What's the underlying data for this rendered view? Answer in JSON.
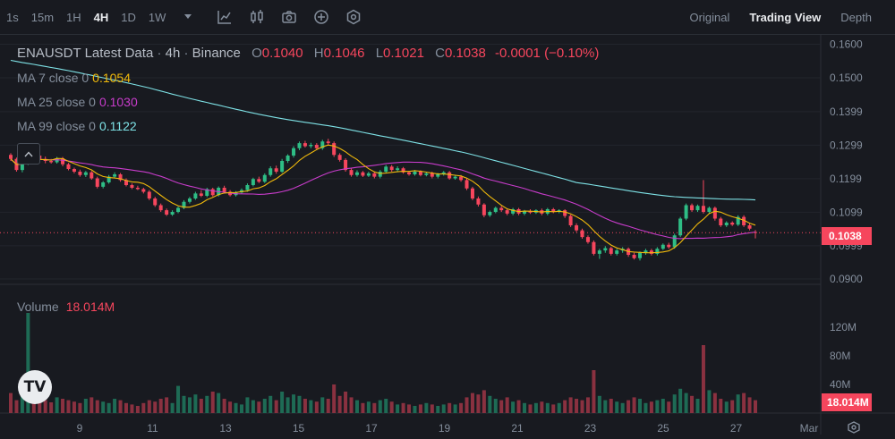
{
  "toolbar": {
    "timeframes": [
      "1s",
      "15m",
      "1H",
      "4H",
      "1D",
      "1W"
    ],
    "active_timeframe": "4H",
    "icons": [
      "chevron-down-icon",
      "indicators-icon",
      "candle-style-icon",
      "camera-icon",
      "add-icon",
      "settings-icon"
    ]
  },
  "views": {
    "original": "Original",
    "trading_view": "Trading View",
    "depth": "Depth",
    "active": "Trading View"
  },
  "legend": {
    "symbol": "ENAUSDT Latest Data",
    "sep1": "·",
    "interval": "4h",
    "sep2": "·",
    "exchange": "Binance",
    "o_label": "O",
    "o_value": "0.1040",
    "h_label": "H",
    "h_value": "0.1046",
    "l_label": "L",
    "l_value": "0.1021",
    "c_label": "C",
    "c_value": "0.1038",
    "change": "-0.0001",
    "change_pct": "(−0.10%)",
    "ma7_label": "MA 7 close 0",
    "ma7_value": "0.1054",
    "ma25_label": "MA 25 close 0",
    "ma25_value": "0.1030",
    "ma99_label": "MA 99 close 0",
    "ma99_value": "0.1122"
  },
  "volume": {
    "label": "Volume",
    "value": "18.014M",
    "tag": "18.014M"
  },
  "price_tag": "0.1038",
  "colors": {
    "up": "#2ebd85",
    "down": "#f6465d",
    "ma7": "#f0b90b",
    "ma25": "#c83ccb",
    "ma99": "#7ee2e6",
    "bg": "#181a20",
    "grid": "#2b2f36"
  },
  "chart_data": {
    "type": "candlestick",
    "price_axis": {
      "ticks": [
        "0.1600",
        "0.1500",
        "0.1399",
        "0.1299",
        "0.1199",
        "0.1099",
        "0.0999",
        "0.0900"
      ],
      "range": [
        0.0884,
        0.1628
      ]
    },
    "volume_axis": {
      "ticks": [
        "120M",
        "80M",
        "40M"
      ],
      "range": [
        0,
        150
      ]
    },
    "x_axis": {
      "ticks": [
        "9",
        "11",
        "13",
        "15",
        "17",
        "19",
        "21",
        "23",
        "25",
        "27",
        "Mar"
      ]
    },
    "candles": [
      {
        "o": 0.127,
        "c": 0.1258,
        "h": 0.1275,
        "l": 0.1252,
        "v": 28
      },
      {
        "o": 0.1258,
        "c": 0.1225,
        "h": 0.1262,
        "l": 0.122,
        "v": 18
      },
      {
        "o": 0.1225,
        "c": 0.1245,
        "h": 0.125,
        "l": 0.1218,
        "v": 30
      },
      {
        "o": 0.1245,
        "c": 0.1285,
        "h": 0.129,
        "l": 0.124,
        "v": 140
      },
      {
        "o": 0.1285,
        "c": 0.1268,
        "h": 0.1292,
        "l": 0.1262,
        "v": 32
      },
      {
        "o": 0.1268,
        "c": 0.1258,
        "h": 0.1275,
        "l": 0.1255,
        "v": 22
      },
      {
        "o": 0.1258,
        "c": 0.1252,
        "h": 0.1265,
        "l": 0.1245,
        "v": 18
      },
      {
        "o": 0.1252,
        "c": 0.1248,
        "h": 0.1258,
        "l": 0.1244,
        "v": 15
      },
      {
        "o": 0.1248,
        "c": 0.126,
        "h": 0.1264,
        "l": 0.1244,
        "v": 22
      },
      {
        "o": 0.126,
        "c": 0.1242,
        "h": 0.1264,
        "l": 0.1236,
        "v": 20
      },
      {
        "o": 0.1242,
        "c": 0.1228,
        "h": 0.1246,
        "l": 0.1224,
        "v": 18
      },
      {
        "o": 0.1228,
        "c": 0.122,
        "h": 0.1232,
        "l": 0.1215,
        "v": 16
      },
      {
        "o": 0.122,
        "c": 0.121,
        "h": 0.1226,
        "l": 0.1205,
        "v": 14
      },
      {
        "o": 0.121,
        "c": 0.1218,
        "h": 0.1222,
        "l": 0.1204,
        "v": 20
      },
      {
        "o": 0.1218,
        "c": 0.12,
        "h": 0.1222,
        "l": 0.1196,
        "v": 22
      },
      {
        "o": 0.12,
        "c": 0.1175,
        "h": 0.1205,
        "l": 0.117,
        "v": 18
      },
      {
        "o": 0.1175,
        "c": 0.1188,
        "h": 0.1192,
        "l": 0.117,
        "v": 16
      },
      {
        "o": 0.1188,
        "c": 0.1205,
        "h": 0.121,
        "l": 0.1184,
        "v": 14
      },
      {
        "o": 0.1205,
        "c": 0.1212,
        "h": 0.1218,
        "l": 0.12,
        "v": 20
      },
      {
        "o": 0.1212,
        "c": 0.1195,
        "h": 0.1216,
        "l": 0.119,
        "v": 18
      },
      {
        "o": 0.1195,
        "c": 0.118,
        "h": 0.12,
        "l": 0.1176,
        "v": 14
      },
      {
        "o": 0.118,
        "c": 0.1172,
        "h": 0.1185,
        "l": 0.1168,
        "v": 12
      },
      {
        "o": 0.1172,
        "c": 0.1168,
        "h": 0.1178,
        "l": 0.1165,
        "v": 10
      },
      {
        "o": 0.1168,
        "c": 0.116,
        "h": 0.1172,
        "l": 0.1155,
        "v": 14
      },
      {
        "o": 0.116,
        "c": 0.114,
        "h": 0.1165,
        "l": 0.1135,
        "v": 18
      },
      {
        "o": 0.114,
        "c": 0.112,
        "h": 0.1145,
        "l": 0.1115,
        "v": 16
      },
      {
        "o": 0.112,
        "c": 0.1105,
        "h": 0.1125,
        "l": 0.11,
        "v": 20
      },
      {
        "o": 0.1105,
        "c": 0.1092,
        "h": 0.111,
        "l": 0.1088,
        "v": 22
      },
      {
        "o": 0.1092,
        "c": 0.11,
        "h": 0.1105,
        "l": 0.1088,
        "v": 14
      },
      {
        "o": 0.11,
        "c": 0.1112,
        "h": 0.1116,
        "l": 0.1096,
        "v": 38
      },
      {
        "o": 0.1112,
        "c": 0.113,
        "h": 0.1135,
        "l": 0.1108,
        "v": 24
      },
      {
        "o": 0.113,
        "c": 0.114,
        "h": 0.1145,
        "l": 0.1125,
        "v": 22
      },
      {
        "o": 0.114,
        "c": 0.1155,
        "h": 0.116,
        "l": 0.1136,
        "v": 26
      },
      {
        "o": 0.1155,
        "c": 0.1148,
        "h": 0.1165,
        "l": 0.1144,
        "v": 20
      },
      {
        "o": 0.1148,
        "c": 0.1168,
        "h": 0.1172,
        "l": 0.1144,
        "v": 24
      },
      {
        "o": 0.1168,
        "c": 0.115,
        "h": 0.1172,
        "l": 0.1146,
        "v": 30
      },
      {
        "o": 0.115,
        "c": 0.1172,
        "h": 0.1176,
        "l": 0.1146,
        "v": 28
      },
      {
        "o": 0.1172,
        "c": 0.116,
        "h": 0.1178,
        "l": 0.1156,
        "v": 20
      },
      {
        "o": 0.116,
        "c": 0.115,
        "h": 0.1165,
        "l": 0.1146,
        "v": 16
      },
      {
        "o": 0.115,
        "c": 0.1158,
        "h": 0.1162,
        "l": 0.1146,
        "v": 14
      },
      {
        "o": 0.1158,
        "c": 0.1165,
        "h": 0.117,
        "l": 0.1154,
        "v": 12
      },
      {
        "o": 0.1165,
        "c": 0.118,
        "h": 0.1185,
        "l": 0.116,
        "v": 22
      },
      {
        "o": 0.118,
        "c": 0.1198,
        "h": 0.1202,
        "l": 0.1176,
        "v": 18
      },
      {
        "o": 0.1198,
        "c": 0.119,
        "h": 0.1205,
        "l": 0.1186,
        "v": 16
      },
      {
        "o": 0.119,
        "c": 0.121,
        "h": 0.1215,
        "l": 0.1186,
        "v": 20
      },
      {
        "o": 0.121,
        "c": 0.123,
        "h": 0.1236,
        "l": 0.1205,
        "v": 24
      },
      {
        "o": 0.123,
        "c": 0.122,
        "h": 0.1238,
        "l": 0.1214,
        "v": 18
      },
      {
        "o": 0.122,
        "c": 0.1252,
        "h": 0.1258,
        "l": 0.1216,
        "v": 30
      },
      {
        "o": 0.1252,
        "c": 0.1268,
        "h": 0.1272,
        "l": 0.1246,
        "v": 22
      },
      {
        "o": 0.1268,
        "c": 0.129,
        "h": 0.1296,
        "l": 0.1262,
        "v": 26
      },
      {
        "o": 0.129,
        "c": 0.1305,
        "h": 0.131,
        "l": 0.1284,
        "v": 24
      },
      {
        "o": 0.1305,
        "c": 0.1296,
        "h": 0.1312,
        "l": 0.1292,
        "v": 20
      },
      {
        "o": 0.1296,
        "c": 0.13,
        "h": 0.1306,
        "l": 0.129,
        "v": 18
      },
      {
        "o": 0.13,
        "c": 0.129,
        "h": 0.1305,
        "l": 0.1284,
        "v": 16
      },
      {
        "o": 0.129,
        "c": 0.131,
        "h": 0.1315,
        "l": 0.1285,
        "v": 22
      },
      {
        "o": 0.131,
        "c": 0.1305,
        "h": 0.1318,
        "l": 0.1298,
        "v": 20
      },
      {
        "o": 0.1305,
        "c": 0.127,
        "h": 0.131,
        "l": 0.1264,
        "v": 40
      },
      {
        "o": 0.127,
        "c": 0.1255,
        "h": 0.1275,
        "l": 0.125,
        "v": 24
      },
      {
        "o": 0.1255,
        "c": 0.1225,
        "h": 0.126,
        "l": 0.122,
        "v": 30
      },
      {
        "o": 0.1225,
        "c": 0.121,
        "h": 0.1232,
        "l": 0.1205,
        "v": 22
      },
      {
        "o": 0.121,
        "c": 0.1218,
        "h": 0.1224,
        "l": 0.1205,
        "v": 18
      },
      {
        "o": 0.1218,
        "c": 0.1208,
        "h": 0.1222,
        "l": 0.1204,
        "v": 14
      },
      {
        "o": 0.1208,
        "c": 0.1215,
        "h": 0.122,
        "l": 0.1204,
        "v": 16
      },
      {
        "o": 0.1215,
        "c": 0.1205,
        "h": 0.122,
        "l": 0.12,
        "v": 14
      },
      {
        "o": 0.1205,
        "c": 0.122,
        "h": 0.1225,
        "l": 0.12,
        "v": 18
      },
      {
        "o": 0.122,
        "c": 0.1235,
        "h": 0.124,
        "l": 0.1216,
        "v": 20
      },
      {
        "o": 0.1235,
        "c": 0.1225,
        "h": 0.124,
        "l": 0.122,
        "v": 16
      },
      {
        "o": 0.1225,
        "c": 0.123,
        "h": 0.1236,
        "l": 0.122,
        "v": 12
      },
      {
        "o": 0.123,
        "c": 0.1218,
        "h": 0.1234,
        "l": 0.1214,
        "v": 14
      },
      {
        "o": 0.1218,
        "c": 0.1212,
        "h": 0.1222,
        "l": 0.1208,
        "v": 12
      },
      {
        "o": 0.1212,
        "c": 0.122,
        "h": 0.1225,
        "l": 0.1208,
        "v": 10
      },
      {
        "o": 0.122,
        "c": 0.121,
        "h": 0.1224,
        "l": 0.1206,
        "v": 12
      },
      {
        "o": 0.121,
        "c": 0.1215,
        "h": 0.122,
        "l": 0.1206,
        "v": 14
      },
      {
        "o": 0.1215,
        "c": 0.1205,
        "h": 0.122,
        "l": 0.12,
        "v": 12
      },
      {
        "o": 0.1205,
        "c": 0.1212,
        "h": 0.1216,
        "l": 0.12,
        "v": 10
      },
      {
        "o": 0.1212,
        "c": 0.1218,
        "h": 0.1222,
        "l": 0.1208,
        "v": 12
      },
      {
        "o": 0.1218,
        "c": 0.12,
        "h": 0.1222,
        "l": 0.1196,
        "v": 14
      },
      {
        "o": 0.12,
        "c": 0.1205,
        "h": 0.121,
        "l": 0.1196,
        "v": 12
      },
      {
        "o": 0.1205,
        "c": 0.1195,
        "h": 0.121,
        "l": 0.119,
        "v": 14
      },
      {
        "o": 0.1195,
        "c": 0.117,
        "h": 0.12,
        "l": 0.1165,
        "v": 22
      },
      {
        "o": 0.117,
        "c": 0.114,
        "h": 0.1175,
        "l": 0.1135,
        "v": 28
      },
      {
        "o": 0.114,
        "c": 0.1122,
        "h": 0.1146,
        "l": 0.1116,
        "v": 26
      },
      {
        "o": 0.1122,
        "c": 0.109,
        "h": 0.1126,
        "l": 0.1084,
        "v": 32
      },
      {
        "o": 0.109,
        "c": 0.11,
        "h": 0.1104,
        "l": 0.1085,
        "v": 24
      },
      {
        "o": 0.11,
        "c": 0.1112,
        "h": 0.1116,
        "l": 0.1096,
        "v": 20
      },
      {
        "o": 0.1112,
        "c": 0.1105,
        "h": 0.1118,
        "l": 0.11,
        "v": 18
      },
      {
        "o": 0.1105,
        "c": 0.1095,
        "h": 0.111,
        "l": 0.109,
        "v": 22
      },
      {
        "o": 0.1095,
        "c": 0.1108,
        "h": 0.1112,
        "l": 0.109,
        "v": 16
      },
      {
        "o": 0.1108,
        "c": 0.1095,
        "h": 0.1112,
        "l": 0.109,
        "v": 18
      },
      {
        "o": 0.1095,
        "c": 0.1102,
        "h": 0.1106,
        "l": 0.109,
        "v": 14
      },
      {
        "o": 0.1102,
        "c": 0.1098,
        "h": 0.1108,
        "l": 0.1094,
        "v": 12
      },
      {
        "o": 0.1098,
        "c": 0.1105,
        "h": 0.1108,
        "l": 0.1094,
        "v": 14
      },
      {
        "o": 0.1105,
        "c": 0.1095,
        "h": 0.111,
        "l": 0.109,
        "v": 16
      },
      {
        "o": 0.1095,
        "c": 0.1108,
        "h": 0.1112,
        "l": 0.109,
        "v": 14
      },
      {
        "o": 0.1108,
        "c": 0.11,
        "h": 0.1112,
        "l": 0.1096,
        "v": 12
      },
      {
        "o": 0.11,
        "c": 0.1105,
        "h": 0.1108,
        "l": 0.1096,
        "v": 14
      },
      {
        "o": 0.1105,
        "c": 0.1088,
        "h": 0.1108,
        "l": 0.1082,
        "v": 18
      },
      {
        "o": 0.1088,
        "c": 0.106,
        "h": 0.1092,
        "l": 0.1055,
        "v": 22
      },
      {
        "o": 0.106,
        "c": 0.1045,
        "h": 0.1066,
        "l": 0.104,
        "v": 20
      },
      {
        "o": 0.1045,
        "c": 0.1025,
        "h": 0.105,
        "l": 0.102,
        "v": 18
      },
      {
        "o": 0.1025,
        "c": 0.101,
        "h": 0.103,
        "l": 0.1005,
        "v": 22
      },
      {
        "o": 0.101,
        "c": 0.0975,
        "h": 0.1015,
        "l": 0.097,
        "v": 60
      },
      {
        "o": 0.0975,
        "c": 0.0985,
        "h": 0.099,
        "l": 0.096,
        "v": 24
      },
      {
        "o": 0.0985,
        "c": 0.0992,
        "h": 0.0998,
        "l": 0.0978,
        "v": 18
      },
      {
        "o": 0.0992,
        "c": 0.0975,
        "h": 0.0996,
        "l": 0.097,
        "v": 20
      },
      {
        "o": 0.0975,
        "c": 0.0985,
        "h": 0.099,
        "l": 0.097,
        "v": 16
      },
      {
        "o": 0.0985,
        "c": 0.099,
        "h": 0.0995,
        "l": 0.0978,
        "v": 14
      },
      {
        "o": 0.099,
        "c": 0.0972,
        "h": 0.0994,
        "l": 0.0966,
        "v": 18
      },
      {
        "o": 0.0972,
        "c": 0.0962,
        "h": 0.0978,
        "l": 0.0958,
        "v": 22
      },
      {
        "o": 0.0962,
        "c": 0.0978,
        "h": 0.0982,
        "l": 0.0955,
        "v": 20
      },
      {
        "o": 0.0978,
        "c": 0.0985,
        "h": 0.099,
        "l": 0.0972,
        "v": 14
      },
      {
        "o": 0.0985,
        "c": 0.0975,
        "h": 0.099,
        "l": 0.097,
        "v": 16
      },
      {
        "o": 0.0975,
        "c": 0.099,
        "h": 0.0995,
        "l": 0.097,
        "v": 18
      },
      {
        "o": 0.099,
        "c": 0.1002,
        "h": 0.1006,
        "l": 0.0986,
        "v": 20
      },
      {
        "o": 0.1002,
        "c": 0.0995,
        "h": 0.1008,
        "l": 0.099,
        "v": 16
      },
      {
        "o": 0.0995,
        "c": 0.103,
        "h": 0.1035,
        "l": 0.099,
        "v": 26
      },
      {
        "o": 0.103,
        "c": 0.108,
        "h": 0.1085,
        "l": 0.1025,
        "v": 34
      },
      {
        "o": 0.108,
        "c": 0.112,
        "h": 0.1125,
        "l": 0.1075,
        "v": 28
      },
      {
        "o": 0.112,
        "c": 0.1105,
        "h": 0.1125,
        "l": 0.11,
        "v": 24
      },
      {
        "o": 0.1105,
        "c": 0.1118,
        "h": 0.1122,
        "l": 0.11,
        "v": 20
      },
      {
        "o": 0.1118,
        "c": 0.11,
        "h": 0.1195,
        "l": 0.1095,
        "v": 95
      },
      {
        "o": 0.11,
        "c": 0.1112,
        "h": 0.1116,
        "l": 0.1096,
        "v": 32
      },
      {
        "o": 0.1112,
        "c": 0.108,
        "h": 0.1116,
        "l": 0.1074,
        "v": 28
      },
      {
        "o": 0.108,
        "c": 0.106,
        "h": 0.1085,
        "l": 0.1055,
        "v": 20
      },
      {
        "o": 0.106,
        "c": 0.1068,
        "h": 0.1072,
        "l": 0.1055,
        "v": 16
      },
      {
        "o": 0.1068,
        "c": 0.1062,
        "h": 0.1072,
        "l": 0.1058,
        "v": 18
      },
      {
        "o": 0.1062,
        "c": 0.1085,
        "h": 0.109,
        "l": 0.1058,
        "v": 26
      },
      {
        "o": 0.1085,
        "c": 0.106,
        "h": 0.109,
        "l": 0.1055,
        "v": 28
      },
      {
        "o": 0.106,
        "c": 0.105,
        "h": 0.1066,
        "l": 0.1045,
        "v": 22
      },
      {
        "o": 0.104,
        "c": 0.1038,
        "h": 0.1046,
        "l": 0.1021,
        "v": 18
      }
    ],
    "ma99_start": 0.1555
  }
}
